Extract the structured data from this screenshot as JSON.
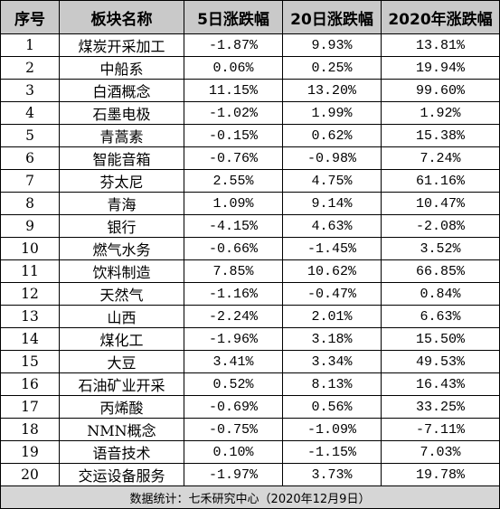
{
  "headers": [
    "序号",
    "板块名称",
    "5日涨跌幅",
    "20日涨跌幅",
    "2020年涨跌幅"
  ],
  "rows": [
    [
      "1",
      "煤炭开采加工",
      "-1.87%",
      "9.93%",
      "13.81%"
    ],
    [
      "2",
      "中船系",
      "0.06%",
      "0.25%",
      "19.94%"
    ],
    [
      "3",
      "白酒概念",
      "11.15%",
      "13.20%",
      "99.60%"
    ],
    [
      "4",
      "石墨电极",
      "-1.02%",
      "1.99%",
      "1.92%"
    ],
    [
      "5",
      "青蒿素",
      "-0.15%",
      "0.62%",
      "15.38%"
    ],
    [
      "6",
      "智能音箱",
      "-0.76%",
      "-0.98%",
      "7.24%"
    ],
    [
      "7",
      "芬太尼",
      "2.55%",
      "4.75%",
      "61.16%"
    ],
    [
      "8",
      "青海",
      "1.09%",
      "9.14%",
      "10.47%"
    ],
    [
      "9",
      "银行",
      "-4.15%",
      "4.63%",
      "-2.08%"
    ],
    [
      "10",
      "燃气水务",
      "-0.66%",
      "-1.45%",
      "3.52%"
    ],
    [
      "11",
      "饮料制造",
      "7.85%",
      "10.62%",
      "66.85%"
    ],
    [
      "12",
      "天然气",
      "-1.16%",
      "-0.47%",
      "0.84%"
    ],
    [
      "13",
      "山西",
      "-2.24%",
      "2.01%",
      "6.63%"
    ],
    [
      "14",
      "煤化工",
      "-1.96%",
      "3.18%",
      "15.50%"
    ],
    [
      "15",
      "大豆",
      "3.41%",
      "3.34%",
      "49.53%"
    ],
    [
      "16",
      "石油矿业开采",
      "0.52%",
      "8.13%",
      "16.43%"
    ],
    [
      "17",
      "丙烯酸",
      "-0.69%",
      "0.56%",
      "33.25%"
    ],
    [
      "18",
      "NMN概念",
      "-0.75%",
      "-1.09%",
      "-7.11%"
    ],
    [
      "19",
      "语音技术",
      "0.10%",
      "-1.15%",
      "7.03%"
    ],
    [
      "20",
      "交运设备服务",
      "-1.97%",
      "3.73%",
      "19.78%"
    ]
  ],
  "footer": "数据统计：七禾研究中心（2020年12月9日）",
  "colors": {
    "header_bg": "#c9c9c9",
    "footer_bg": "#d6d6d6",
    "border": "#000000"
  }
}
